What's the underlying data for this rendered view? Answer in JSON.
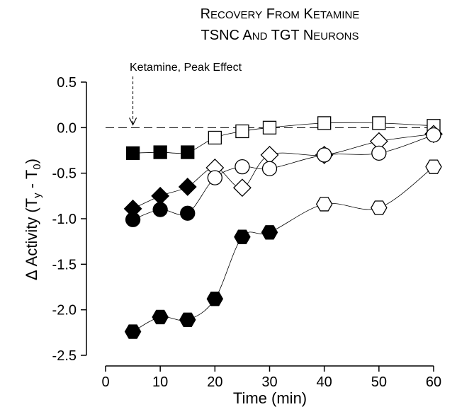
{
  "chart_data": {
    "type": "scatter",
    "title": "RECOVERY FROM KETAMINE",
    "subtitle": "TSNC AND TGT NEURONS",
    "xlabel": "Time (min)",
    "ylabel": "Δ Activity (Ty - T0)",
    "ylabel_parts": {
      "main": "Δ Activity (T",
      "sub1": "y",
      "mid": " - T",
      "sub2": "0",
      "end": ")"
    },
    "xlim": [
      0,
      60
    ],
    "ylim": [
      -2.5,
      0.5
    ],
    "x_ticks": [
      0,
      10,
      20,
      30,
      40,
      50,
      60
    ],
    "y_ticks": [
      0.5,
      0.0,
      -0.5,
      -1.0,
      -1.5,
      -2.0,
      -2.5
    ],
    "y_tick_labels": [
      "0.5",
      "0.0",
      "-0.5",
      "-1.0",
      "-1.5",
      "-2.0",
      "-2.5"
    ],
    "x_tick_labels": [
      "0",
      "10",
      "20",
      "30",
      "40",
      "50",
      "60"
    ],
    "grid": false,
    "reference_line": {
      "y": 0.0,
      "style": "dashed"
    },
    "annotation": {
      "text": "Ketamine, Peak Effect",
      "x": 5,
      "arrow_to_y": 0.0
    },
    "series": [
      {
        "marker": "square",
        "x": [
          5,
          10,
          15,
          20,
          25,
          30,
          40,
          50,
          60
        ],
        "y": [
          -0.28,
          -0.27,
          -0.27,
          -0.11,
          -0.04,
          0.0,
          0.05,
          0.05,
          0.02
        ],
        "filled": [
          true,
          true,
          true,
          false,
          false,
          false,
          false,
          false,
          false
        ]
      },
      {
        "marker": "diamond",
        "x": [
          5,
          10,
          15,
          20,
          25,
          30,
          40,
          50,
          60
        ],
        "y": [
          -0.89,
          -0.75,
          -0.65,
          -0.44,
          -0.66,
          -0.3,
          -0.3,
          -0.15,
          -0.07
        ],
        "filled": [
          true,
          true,
          true,
          false,
          false,
          false,
          false,
          false,
          false
        ]
      },
      {
        "marker": "circle",
        "x": [
          5,
          10,
          15,
          20,
          25,
          30,
          40,
          50,
          60
        ],
        "y": [
          -1.01,
          -0.9,
          -0.94,
          -0.55,
          -0.43,
          -0.45,
          -0.3,
          -0.28,
          -0.08
        ],
        "filled": [
          true,
          true,
          true,
          false,
          false,
          false,
          false,
          false,
          false
        ]
      },
      {
        "marker": "hexagon",
        "x": [
          5,
          10,
          15,
          20,
          25,
          30,
          40,
          50,
          60
        ],
        "y": [
          -2.24,
          -2.08,
          -2.11,
          -1.88,
          -1.2,
          -1.15,
          -0.84,
          -0.88,
          -0.43
        ],
        "filled": [
          true,
          true,
          true,
          true,
          true,
          true,
          false,
          false,
          false
        ]
      }
    ]
  }
}
